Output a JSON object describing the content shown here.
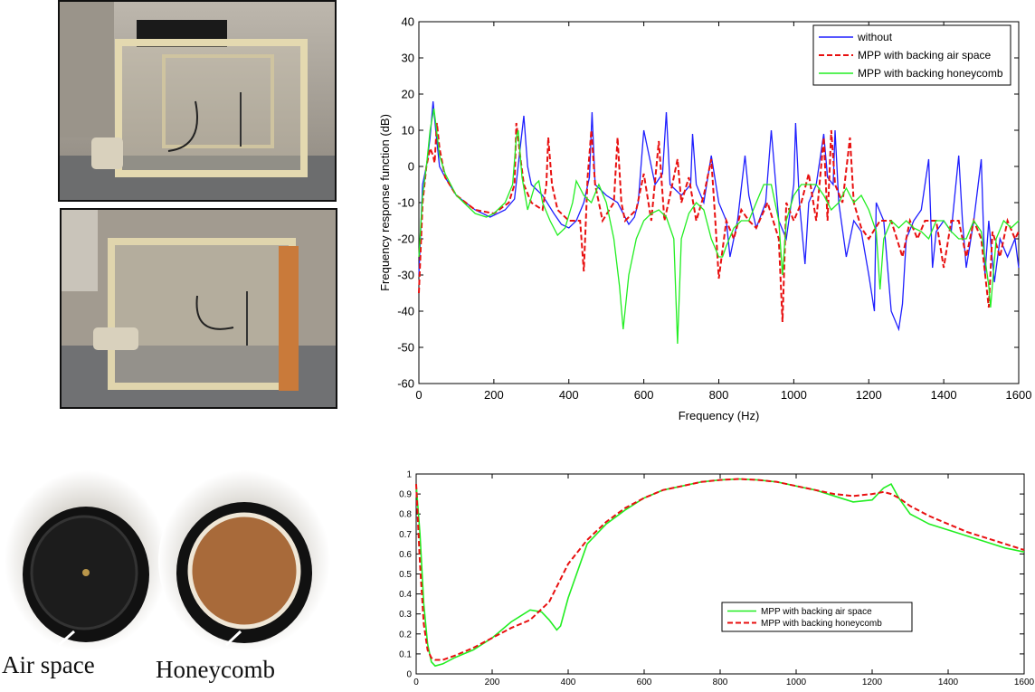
{
  "photos": {
    "captions": {
      "air_space": "Air space",
      "honeycomb": "Honeycomb"
    }
  },
  "colors": {
    "blue": "#1f1fff",
    "red": "#e81010",
    "green": "#22ee22",
    "axis": "#000000"
  },
  "chart_data": [
    {
      "type": "line",
      "title": "",
      "xlabel": "Frequency (Hz)",
      "ylabel": "Frequency response function (dB)",
      "xlim": [
        0,
        1600
      ],
      "ylim": [
        -60,
        40
      ],
      "xticks": [
        0,
        200,
        400,
        600,
        800,
        1000,
        1200,
        1400,
        1600
      ],
      "yticks": [
        -60,
        -50,
        -40,
        -30,
        -20,
        -10,
        0,
        10,
        20,
        30,
        40
      ],
      "legend_position": "top-right",
      "grid": false,
      "series": [
        {
          "name": "without",
          "color": "#1f1fff",
          "style": "solid",
          "x": [
            0,
            10,
            20,
            30,
            38,
            45,
            55,
            70,
            100,
            150,
            190,
            230,
            255,
            270,
            280,
            290,
            300,
            330,
            360,
            380,
            400,
            420,
            440,
            455,
            462,
            470,
            500,
            530,
            560,
            575,
            585,
            600,
            630,
            650,
            660,
            670,
            700,
            725,
            730,
            740,
            760,
            780,
            800,
            820,
            830,
            850,
            870,
            880,
            900,
            925,
            940,
            960,
            980,
            1000,
            1005,
            1015,
            1030,
            1040,
            1060,
            1080,
            1090,
            1105,
            1110,
            1120,
            1140,
            1160,
            1180,
            1200,
            1215,
            1220,
            1240,
            1260,
            1280,
            1290,
            1300,
            1320,
            1340,
            1360,
            1370,
            1380,
            1400,
            1420,
            1440,
            1450,
            1460,
            1480,
            1500,
            1510,
            1520,
            1535,
            1550,
            1570,
            1590,
            1600
          ],
          "y": [
            -30,
            -5,
            0,
            8,
            18,
            10,
            0,
            -3,
            -8,
            -12,
            -14,
            -12,
            -9,
            5,
            14,
            0,
            -5,
            -8,
            -13,
            -16,
            -17,
            -15,
            -10,
            -3,
            15,
            -5,
            -8,
            -10,
            -16,
            -14,
            -10,
            10,
            -5,
            -2,
            15,
            -5,
            -8,
            -5,
            9,
            -5,
            -10,
            3,
            -10,
            -15,
            -25,
            -15,
            3,
            -8,
            -17,
            -10,
            10,
            -15,
            -20,
            -5,
            12,
            -10,
            -27,
            -10,
            -5,
            9,
            -3,
            -5,
            10,
            -10,
            -25,
            -15,
            -18,
            -30,
            -40,
            -10,
            -15,
            -40,
            -45,
            -38,
            -20,
            -15,
            -12,
            2,
            -28,
            -18,
            -15,
            -18,
            3,
            -15,
            -28,
            -15,
            2,
            -30,
            -15,
            -32,
            -20,
            -25,
            -20,
            -28
          ]
        },
        {
          "name": "MPP with backing air space",
          "color": "#e81010",
          "style": "dashed",
          "x": [
            0,
            10,
            20,
            30,
            38,
            42,
            48,
            55,
            70,
            100,
            150,
            200,
            240,
            255,
            260,
            270,
            280,
            300,
            330,
            340,
            345,
            355,
            370,
            400,
            430,
            440,
            450,
            460,
            470,
            490,
            520,
            530,
            540,
            550,
            580,
            600,
            620,
            640,
            655,
            670,
            690,
            700,
            720,
            740,
            760,
            780,
            790,
            800,
            820,
            840,
            860,
            880,
            900,
            930,
            960,
            970,
            980,
            1000,
            1020,
            1040,
            1060,
            1080,
            1090,
            1100,
            1110,
            1130,
            1150,
            1160,
            1180,
            1200,
            1230,
            1260,
            1290,
            1310,
            1330,
            1350,
            1380,
            1400,
            1420,
            1440,
            1460,
            1480,
            1500,
            1520,
            1530,
            1550,
            1570,
            1590,
            1600
          ],
          "y": [
            -35,
            -10,
            0,
            5,
            3,
            1,
            12,
            5,
            -3,
            -8,
            -12,
            -13,
            -10,
            -5,
            12,
            3,
            -5,
            -10,
            -12,
            -5,
            8,
            -5,
            -12,
            -15,
            -15,
            -29,
            -3,
            10,
            -5,
            -15,
            -10,
            8,
            -10,
            -15,
            -12,
            -2,
            -15,
            7,
            -15,
            -8,
            2,
            -10,
            -3,
            -15,
            -8,
            2,
            -14,
            -31,
            -15,
            -20,
            -12,
            -15,
            -17,
            -10,
            -20,
            -43,
            -10,
            -15,
            -10,
            -2,
            -15,
            8,
            -15,
            10,
            -5,
            -10,
            8,
            -10,
            -17,
            -20,
            -15,
            -15,
            -25,
            -15,
            -20,
            -15,
            -15,
            -28,
            -15,
            -15,
            -25,
            -15,
            -20,
            -39,
            -18,
            -25,
            -15,
            -20,
            -18
          ]
        },
        {
          "name": "MPP with backing honeycomb",
          "color": "#22ee22",
          "style": "solid",
          "x": [
            0,
            10,
            20,
            30,
            40,
            45,
            55,
            70,
            100,
            150,
            180,
            200,
            230,
            250,
            260,
            265,
            275,
            290,
            310,
            320,
            330,
            350,
            370,
            390,
            410,
            420,
            440,
            460,
            480,
            500,
            520,
            535,
            545,
            560,
            580,
            600,
            620,
            640,
            660,
            680,
            690,
            700,
            720,
            740,
            760,
            780,
            800,
            810,
            820,
            840,
            860,
            880,
            900,
            920,
            940,
            960,
            970,
            980,
            1000,
            1020,
            1040,
            1060,
            1080,
            1100,
            1120,
            1140,
            1160,
            1180,
            1200,
            1220,
            1230,
            1240,
            1260,
            1280,
            1300,
            1320,
            1340,
            1360,
            1380,
            1400,
            1420,
            1440,
            1460,
            1480,
            1500,
            1520,
            1525,
            1540,
            1560,
            1580,
            1600
          ],
          "y": [
            -25,
            -8,
            0,
            10,
            16,
            12,
            3,
            -2,
            -8,
            -13,
            -14,
            -13,
            -10,
            -5,
            8,
            10,
            -3,
            -12,
            -5,
            -4,
            -10,
            -15,
            -19,
            -17,
            -10,
            -4,
            -8,
            -10,
            -5,
            -10,
            -20,
            -33,
            -45,
            -30,
            -20,
            -15,
            -13,
            -12,
            -14,
            -20,
            -49,
            -20,
            -13,
            -10,
            -12,
            -20,
            -25,
            -25,
            -22,
            -17,
            -15,
            -15,
            -10,
            -5,
            -5,
            -15,
            -30,
            -15,
            -8,
            -5,
            -5,
            -5,
            -8,
            -12,
            -10,
            -6,
            -10,
            -8,
            -12,
            -18,
            -34,
            -20,
            -15,
            -17,
            -15,
            -17,
            -18,
            -20,
            -15,
            -15,
            -18,
            -20,
            -20,
            -15,
            -18,
            -33,
            -39,
            -20,
            -15,
            -17,
            -15
          ]
        }
      ]
    },
    {
      "type": "line",
      "title": "",
      "xlabel": "",
      "ylabel": "",
      "xlim": [
        0,
        1600
      ],
      "ylim": [
        0,
        1
      ],
      "xticks": [
        0,
        200,
        400,
        600,
        800,
        1000,
        1200,
        1400,
        1600
      ],
      "yticks": [
        0,
        0.1,
        0.2,
        0.3,
        0.4,
        0.5,
        0.6,
        0.7,
        0.8,
        0.9,
        1
      ],
      "legend_position": "center-right",
      "grid": false,
      "series": [
        {
          "name": "MPP with backing air space",
          "color": "#22ee22",
          "style": "solid",
          "x": [
            0,
            10,
            20,
            30,
            40,
            50,
            70,
            100,
            150,
            200,
            250,
            300,
            330,
            350,
            370,
            380,
            400,
            450,
            500,
            550,
            600,
            650,
            700,
            750,
            800,
            850,
            900,
            950,
            1000,
            1050,
            1100,
            1150,
            1200,
            1230,
            1250,
            1270,
            1300,
            1350,
            1400,
            1450,
            1500,
            1550,
            1600
          ],
          "y": [
            0.95,
            0.7,
            0.35,
            0.15,
            0.06,
            0.04,
            0.05,
            0.08,
            0.12,
            0.18,
            0.26,
            0.32,
            0.31,
            0.27,
            0.22,
            0.24,
            0.38,
            0.65,
            0.75,
            0.82,
            0.88,
            0.92,
            0.94,
            0.96,
            0.97,
            0.975,
            0.97,
            0.96,
            0.94,
            0.92,
            0.89,
            0.86,
            0.87,
            0.93,
            0.95,
            0.88,
            0.8,
            0.75,
            0.72,
            0.69,
            0.66,
            0.63,
            0.61
          ]
        },
        {
          "name": "MPP with backing honeycomb",
          "color": "#e81010",
          "style": "dashed",
          "x": [
            0,
            10,
            20,
            30,
            40,
            50,
            70,
            100,
            150,
            200,
            250,
            300,
            350,
            400,
            450,
            500,
            550,
            600,
            650,
            700,
            750,
            800,
            850,
            900,
            950,
            1000,
            1050,
            1100,
            1150,
            1200,
            1230,
            1250,
            1270,
            1300,
            1350,
            1400,
            1450,
            1500,
            1550,
            1600
          ],
          "y": [
            0.95,
            0.55,
            0.25,
            0.12,
            0.08,
            0.07,
            0.07,
            0.09,
            0.13,
            0.18,
            0.23,
            0.27,
            0.36,
            0.55,
            0.67,
            0.76,
            0.83,
            0.88,
            0.92,
            0.94,
            0.96,
            0.97,
            0.975,
            0.97,
            0.96,
            0.94,
            0.92,
            0.9,
            0.89,
            0.9,
            0.91,
            0.9,
            0.88,
            0.84,
            0.79,
            0.75,
            0.71,
            0.68,
            0.65,
            0.62
          ]
        }
      ]
    }
  ]
}
